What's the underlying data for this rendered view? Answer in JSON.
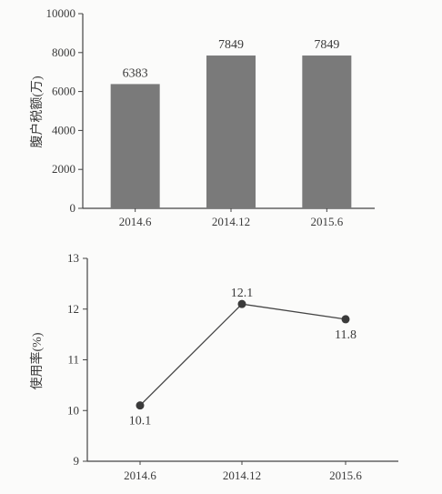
{
  "chart_data": [
    {
      "type": "bar",
      "title": "",
      "xlabel": "",
      "ylabel": "腹户税额(万)",
      "categories": [
        "2014.6",
        "2014.12",
        "2015.6"
      ],
      "values": [
        6383,
        7849,
        7849
      ],
      "data_labels": [
        "6383",
        "7849",
        "7849"
      ],
      "ylim": [
        0,
        10000
      ],
      "yticks": [
        0,
        2000,
        4000,
        6000,
        8000,
        10000
      ],
      "ytick_labels": [
        "0",
        "2000",
        "4000",
        "6000",
        "8000",
        "10000"
      ],
      "bar_color": "#7a7a7a",
      "grid": false,
      "legend": "none"
    },
    {
      "type": "line",
      "title": "",
      "xlabel": "",
      "ylabel": "使用率(%)",
      "categories": [
        "2014.6",
        "2014.12",
        "2015.6"
      ],
      "values": [
        10.1,
        12.1,
        11.8
      ],
      "data_labels": [
        "10.1",
        "12.1",
        "11.8"
      ],
      "ylim": [
        9,
        13
      ],
      "yticks": [
        9,
        10,
        11,
        12,
        13
      ],
      "ytick_labels": [
        "9",
        "10",
        "11",
        "12",
        "13"
      ],
      "line_color": "#444444",
      "marker": "filled-circle",
      "grid": false,
      "legend": "none"
    }
  ]
}
